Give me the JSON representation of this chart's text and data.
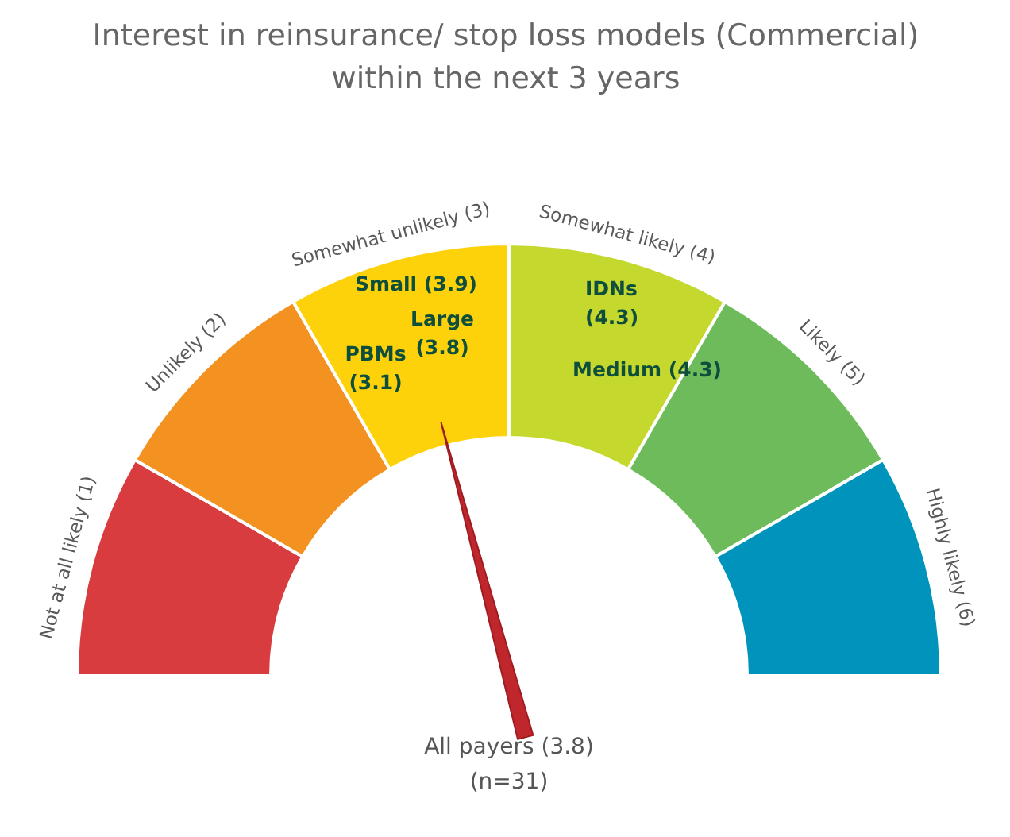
{
  "chart_data": {
    "type": "donut",
    "title": "Interest in reinsurance/ stop loss models (Commercial)\nwithin the next 3 years",
    "categories": [
      "Not at all likely (1)",
      "Unlikely (2)",
      "Somewhat unlikely (3)",
      "Somewhat likely (4)",
      "Likely (5)",
      "Highly likely (6)"
    ],
    "values": [
      16.67,
      16.67,
      16.66,
      16.67,
      16.67,
      16.66
    ],
    "colors": [
      "#d83c3e",
      "#f39221",
      "#fdd20a",
      "#c5d82e",
      "#6dbb5a",
      "#0093bc"
    ],
    "needle": "Somewhat unlikely (3)",
    "annotations": [
      "Small (3.9)",
      "Large (3.8)",
      "PBMs (3.1)",
      "IDNs (4.3)",
      "Medium (4.3)",
      "All payers (3.8)",
      "(n=31)"
    ]
  }
}
